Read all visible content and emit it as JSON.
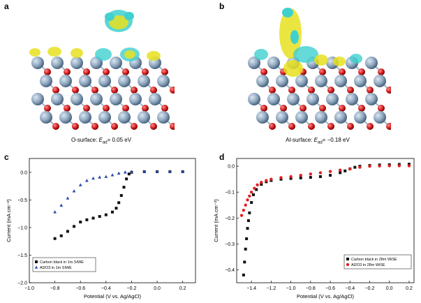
{
  "panels": {
    "a": {
      "letter": "a",
      "caption_prefix": "O-surface: ",
      "caption_italic": "E",
      "caption_sub": "ad",
      "caption_suffix": "= 0.05 eV"
    },
    "b": {
      "letter": "b",
      "caption_prefix": "Al-surface: ",
      "caption_italic": "E",
      "caption_sub": "ad",
      "caption_suffix": "= −0.18 eV"
    },
    "c": {
      "letter": "c"
    },
    "d": {
      "letter": "d"
    }
  },
  "colors": {
    "black_series": "#111111",
    "blue_series": "#2a4db0",
    "red_series": "#e02020",
    "atom_al": "#8fa8c0",
    "atom_o": "#d42020",
    "isosurface_yellow": "#e8e020",
    "isosurface_cyan": "#40d0d0"
  },
  "chart_data": [
    {
      "id": "c",
      "type": "scatter",
      "xlabel": "Potential (V vs. Ag/AgCl)",
      "ylabel": "Current (mA cm⁻²)",
      "xlim": [
        -1.0,
        0.3
      ],
      "ylim": [
        -2.0,
        0.25
      ],
      "xticks": [
        -1.0,
        -0.8,
        -0.6,
        -0.4,
        -0.2,
        0.0,
        0.2
      ],
      "xtick_labels": [
        "−1.0",
        "−0.8",
        "−0.6",
        "−0.4",
        "−0.2",
        "0.0",
        "0.2"
      ],
      "yticks": [
        -2.0,
        -1.5,
        -1.0,
        -0.5,
        0.0
      ],
      "ytick_labels": [
        "−2.0",
        "−1.5",
        "−1.0",
        "−0.5",
        "0.0"
      ],
      "legend_position": "bottom-left",
      "series": [
        {
          "name": "Carbon black in 1m SIWE",
          "marker": "square",
          "color": "#111111",
          "x": [
            -0.8,
            -0.75,
            -0.7,
            -0.65,
            -0.6,
            -0.55,
            -0.5,
            -0.45,
            -0.4,
            -0.35,
            -0.32,
            -0.3,
            -0.28,
            -0.26,
            -0.24,
            -0.22,
            -0.2,
            -0.1,
            0.0,
            0.1,
            0.2
          ],
          "y": [
            -1.2,
            -1.15,
            -1.07,
            -0.98,
            -0.9,
            -0.86,
            -0.83,
            -0.8,
            -0.77,
            -0.72,
            -0.65,
            -0.55,
            -0.42,
            -0.27,
            -0.12,
            -0.03,
            0.0,
            0.01,
            0.01,
            0.01,
            0.01
          ]
        },
        {
          "name": "Al2O3 in 1m SIWE",
          "marker": "triangle",
          "color": "#2a4db0",
          "x": [
            -0.8,
            -0.75,
            -0.7,
            -0.65,
            -0.6,
            -0.55,
            -0.5,
            -0.45,
            -0.4,
            -0.35,
            -0.3,
            -0.25,
            -0.2,
            -0.1,
            0.0,
            0.1,
            0.2
          ],
          "y": [
            -0.72,
            -0.6,
            -0.47,
            -0.34,
            -0.23,
            -0.15,
            -0.11,
            -0.09,
            -0.08,
            -0.05,
            -0.02,
            0.0,
            0.01,
            0.01,
            0.01,
            0.01,
            0.01
          ]
        }
      ]
    },
    {
      "id": "d",
      "type": "scatter",
      "xlabel": "Potential (V vs. Ag/AgCl)",
      "ylabel": "Current (mA cm⁻²)",
      "xlim": [
        -1.55,
        0.25
      ],
      "ylim": [
        -0.45,
        0.03
      ],
      "xticks": [
        -1.4,
        -1.2,
        -1.0,
        -0.8,
        -0.6,
        -0.4,
        -0.2,
        0.0,
        0.2
      ],
      "xtick_labels": [
        "−1.4",
        "−1.2",
        "−1.0",
        "−0.8",
        "−0.6",
        "−0.4",
        "−0.2",
        "0.0",
        "0.2"
      ],
      "yticks": [
        -0.4,
        -0.3,
        -0.2,
        -0.1,
        0.0
      ],
      "ytick_labels": [
        "−0.4",
        "−0.3",
        "−0.2",
        "−0.1",
        "0.0"
      ],
      "legend_position": "bottom-right",
      "series": [
        {
          "name": "Carbon black in 28m WiSE",
          "marker": "square",
          "color": "#111111",
          "x": [
            -1.48,
            -1.47,
            -1.46,
            -1.45,
            -1.44,
            -1.43,
            -1.42,
            -1.4,
            -1.38,
            -1.35,
            -1.3,
            -1.25,
            -1.2,
            -1.1,
            -1.0,
            -0.9,
            -0.8,
            -0.7,
            -0.6,
            -0.5,
            -0.45,
            -0.4,
            -0.35,
            -0.3,
            -0.2,
            -0.1,
            0.0,
            0.1,
            0.2
          ],
          "y": [
            -0.42,
            -0.37,
            -0.32,
            -0.28,
            -0.24,
            -0.21,
            -0.18,
            -0.14,
            -0.11,
            -0.09,
            -0.07,
            -0.06,
            -0.055,
            -0.05,
            -0.047,
            -0.045,
            -0.043,
            -0.04,
            -0.035,
            -0.025,
            -0.018,
            -0.01,
            -0.004,
            0.0,
            0.003,
            0.005,
            0.006,
            0.007,
            0.008
          ]
        },
        {
          "name": "Al2O3 in 28m WiSE",
          "marker": "circle",
          "color": "#e02020",
          "x": [
            -1.5,
            -1.48,
            -1.46,
            -1.44,
            -1.42,
            -1.4,
            -1.37,
            -1.34,
            -1.3,
            -1.25,
            -1.2,
            -1.1,
            -1.0,
            -0.9,
            -0.8,
            -0.7,
            -0.6,
            -0.5,
            -0.4,
            -0.3,
            -0.2,
            -0.1,
            0.0,
            0.1,
            0.2
          ],
          "y": [
            -0.19,
            -0.17,
            -0.15,
            -0.13,
            -0.115,
            -0.1,
            -0.085,
            -0.072,
            -0.062,
            -0.055,
            -0.05,
            -0.044,
            -0.04,
            -0.035,
            -0.03,
            -0.025,
            -0.02,
            -0.015,
            -0.01,
            -0.004,
            0.0,
            0.001,
            0.002,
            0.002,
            0.002
          ]
        }
      ]
    }
  ]
}
